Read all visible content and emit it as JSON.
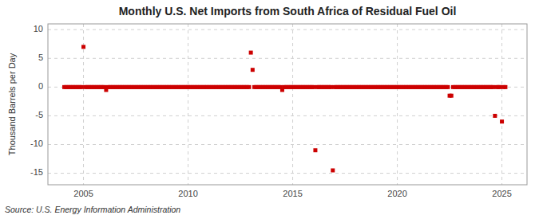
{
  "chart_data": {
    "type": "scatter",
    "title": "Monthly U.S. Net Imports from South Africa of Residual Fuel Oil",
    "y_label": "Thousand Barrels per Day",
    "annotations": [
      "Source: U.S. Energy Information Administration"
    ],
    "color": "#cc0000",
    "marker": "square",
    "grid": true,
    "xlim": [
      2003.3,
      2026.2
    ],
    "xticks": [
      2005,
      2010,
      2015,
      2020,
      2025
    ],
    "ylim": [
      -17,
      11
    ],
    "yticks": [
      -15,
      -10,
      -5,
      0,
      5,
      10
    ],
    "x": [
      2004.083,
      2004.167,
      2004.25,
      2004.333,
      2004.417,
      2004.5,
      2004.583,
      2004.667,
      2004.75,
      2004.833,
      2004.917,
      2005.0,
      2005.083,
      2005.167,
      2005.25,
      2005.333,
      2005.417,
      2005.5,
      2005.583,
      2005.667,
      2005.75,
      2005.833,
      2005.917,
      2006.0,
      2006.083,
      2006.167,
      2006.25,
      2006.333,
      2006.417,
      2006.5,
      2006.583,
      2006.667,
      2006.75,
      2006.833,
      2006.917,
      2007.0,
      2007.083,
      2007.167,
      2007.25,
      2007.333,
      2007.417,
      2007.5,
      2007.583,
      2007.667,
      2007.75,
      2007.833,
      2007.917,
      2008.0,
      2008.083,
      2008.167,
      2008.25,
      2008.333,
      2008.417,
      2008.5,
      2008.583,
      2008.667,
      2008.75,
      2008.833,
      2008.917,
      2009.0,
      2009.083,
      2009.167,
      2009.25,
      2009.333,
      2009.417,
      2009.5,
      2009.583,
      2009.667,
      2009.75,
      2009.833,
      2009.917,
      2010.0,
      2010.083,
      2010.167,
      2010.25,
      2010.333,
      2010.417,
      2010.5,
      2010.583,
      2010.667,
      2010.75,
      2010.833,
      2010.917,
      2011.0,
      2011.083,
      2011.167,
      2011.25,
      2011.333,
      2011.417,
      2011.5,
      2011.583,
      2011.667,
      2011.75,
      2011.833,
      2011.917,
      2012.0,
      2012.083,
      2012.167,
      2012.25,
      2012.333,
      2012.417,
      2012.5,
      2012.583,
      2012.667,
      2012.75,
      2012.833,
      2012.917,
      2013.0,
      2013.083,
      2013.167,
      2013.25,
      2013.333,
      2013.417,
      2013.5,
      2013.583,
      2013.667,
      2013.75,
      2013.833,
      2013.917,
      2014.0,
      2014.083,
      2014.167,
      2014.25,
      2014.333,
      2014.417,
      2014.5,
      2014.583,
      2014.667,
      2014.75,
      2014.833,
      2014.917,
      2015.0,
      2015.083,
      2015.167,
      2015.25,
      2015.333,
      2015.417,
      2015.5,
      2015.583,
      2015.667,
      2015.75,
      2015.833,
      2015.917,
      2016.0,
      2016.083,
      2016.167,
      2016.25,
      2016.333,
      2016.417,
      2016.5,
      2016.583,
      2016.667,
      2016.75,
      2016.833,
      2016.917,
      2017.0,
      2017.083,
      2017.167,
      2017.25,
      2017.333,
      2017.417,
      2017.5,
      2017.583,
      2017.667,
      2017.75,
      2017.833,
      2017.917,
      2018.0,
      2018.083,
      2018.167,
      2018.25,
      2018.333,
      2018.417,
      2018.5,
      2018.583,
      2018.667,
      2018.75,
      2018.833,
      2018.917,
      2019.0,
      2019.083,
      2019.167,
      2019.25,
      2019.333,
      2019.417,
      2019.5,
      2019.583,
      2019.667,
      2019.75,
      2019.833,
      2019.917,
      2020.0,
      2020.083,
      2020.167,
      2020.25,
      2020.333,
      2020.417,
      2020.5,
      2020.583,
      2020.667,
      2020.75,
      2020.833,
      2020.917,
      2021.0,
      2021.083,
      2021.167,
      2021.25,
      2021.333,
      2021.417,
      2021.5,
      2021.583,
      2021.667,
      2021.75,
      2021.833,
      2021.917,
      2022.0,
      2022.083,
      2022.167,
      2022.25,
      2022.333,
      2022.417,
      2022.5,
      2022.583,
      2022.667,
      2022.75,
      2022.833,
      2022.917,
      2023.0,
      2023.083,
      2023.167,
      2023.25,
      2023.333,
      2023.417,
      2023.5,
      2023.583,
      2023.667,
      2023.75,
      2023.833,
      2023.917,
      2024.0,
      2024.083,
      2024.167,
      2024.25,
      2024.333,
      2024.417,
      2024.5,
      2024.583,
      2024.667,
      2024.75,
      2024.833,
      2024.917,
      2025.0,
      2025.083,
      2025.167
    ],
    "values": [
      0,
      0,
      0,
      0,
      0,
      0,
      0,
      0,
      0,
      0,
      0,
      7.0,
      0,
      0,
      0,
      0,
      0,
      0,
      0,
      0,
      0,
      0,
      0,
      0,
      -0.5,
      0,
      0,
      0,
      0,
      0,
      0,
      0,
      0,
      0,
      0,
      0,
      0,
      0,
      0,
      0,
      0,
      0,
      0,
      0,
      0,
      0,
      0,
      0,
      0,
      0,
      0,
      0,
      0,
      0,
      0,
      0,
      0,
      0,
      0,
      0,
      0,
      0,
      0,
      0,
      0,
      0,
      0,
      0,
      0,
      0,
      0,
      0,
      0,
      0,
      0,
      0,
      0,
      0,
      0,
      0,
      0,
      0,
      0,
      0,
      0,
      0,
      0,
      0,
      0,
      0,
      0,
      0,
      0,
      0,
      0,
      0,
      0,
      0,
      0,
      0,
      0,
      0,
      0,
      0,
      0,
      0,
      0,
      6.0,
      3.0,
      0,
      0,
      0,
      0,
      0,
      0,
      0,
      0,
      0,
      0,
      0,
      0,
      0,
      0,
      0,
      0,
      -0.5,
      0,
      0,
      0,
      0,
      0,
      0,
      0,
      0,
      0,
      0,
      0,
      0,
      0,
      0,
      0,
      0,
      0,
      0,
      -11.0,
      0,
      0,
      0,
      0,
      0,
      0,
      0,
      0,
      0,
      -14.5,
      0,
      0,
      0,
      0,
      0,
      0,
      0,
      0,
      0,
      0,
      0,
      0,
      0,
      0,
      0,
      0,
      0,
      0,
      0,
      0,
      0,
      0,
      0,
      0,
      0,
      0,
      0,
      0,
      0,
      0,
      0,
      0,
      0,
      0,
      0,
      0,
      0,
      0,
      0,
      0,
      0,
      0,
      0,
      0,
      0,
      0,
      0,
      0,
      0,
      0,
      0,
      0,
      0,
      0,
      0,
      0,
      0,
      0,
      0,
      0,
      0,
      0,
      0,
      0,
      0,
      0,
      -1.5,
      -1.5,
      0,
      0,
      0,
      0,
      0,
      0,
      0,
      0,
      0,
      0,
      0,
      0,
      0,
      0,
      0,
      0,
      0,
      0,
      0,
      0,
      0,
      0,
      0,
      0,
      -5.0,
      0,
      0,
      0,
      -6.0,
      0,
      0
    ]
  }
}
